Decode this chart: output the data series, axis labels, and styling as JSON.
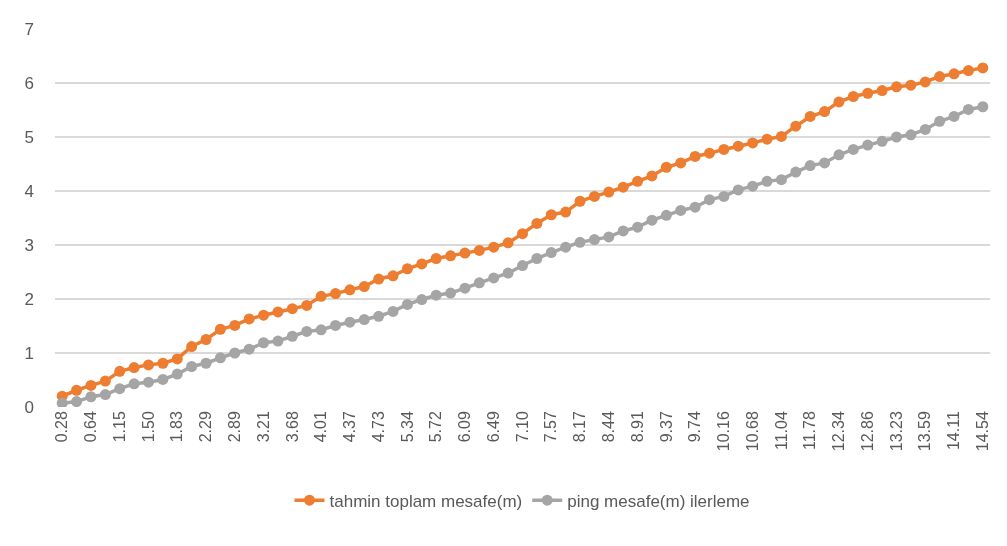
{
  "chart_data": {
    "type": "line",
    "categories": [
      "0.28",
      null,
      "0.64",
      null,
      "1.15",
      null,
      "1.50",
      null,
      "1.83",
      null,
      "2.29",
      null,
      "2.89",
      null,
      "3.21",
      null,
      "3.68",
      null,
      "4.01",
      null,
      "4.37",
      null,
      "4.73",
      null,
      "5.34",
      null,
      "5.72",
      null,
      "6.09",
      null,
      "6.49",
      null,
      "7.10",
      null,
      "7.57",
      null,
      "8.17",
      null,
      "8.44",
      null,
      "8.91",
      null,
      "9.37",
      null,
      "9.74",
      null,
      "10.16",
      null,
      "10.68",
      null,
      "11.04",
      null,
      "11.78",
      null,
      "12.34",
      null,
      "12.86",
      null,
      "13.23",
      null,
      "13.59",
      null,
      "14.11",
      null,
      "14.54"
    ],
    "series": [
      {
        "name": "tahmin toplam mesafe(m)",
        "color": "#ed7d31",
        "values": [
          0.2,
          0.31,
          0.4,
          0.48,
          0.66,
          0.73,
          0.78,
          0.81,
          0.89,
          1.12,
          1.25,
          1.44,
          1.51,
          1.63,
          1.7,
          1.76,
          1.82,
          1.88,
          2.05,
          2.1,
          2.17,
          2.23,
          2.37,
          2.43,
          2.56,
          2.65,
          2.75,
          2.8,
          2.85,
          2.9,
          2.96,
          3.04,
          3.21,
          3.4,
          3.56,
          3.61,
          3.81,
          3.9,
          3.98,
          4.07,
          4.18,
          4.28,
          4.44,
          4.52,
          4.64,
          4.7,
          4.77,
          4.83,
          4.89,
          4.96,
          5.01,
          5.2,
          5.38,
          5.47,
          5.65,
          5.75,
          5.81,
          5.86,
          5.93,
          5.96,
          6.02,
          6.12,
          6.17,
          6.23,
          6.28
        ]
      },
      {
        "name": "ping mesafe(m) ilerleme",
        "color": "#a5a5a5",
        "values": [
          0.07,
          0.1,
          0.19,
          0.23,
          0.34,
          0.43,
          0.46,
          0.51,
          0.61,
          0.75,
          0.81,
          0.91,
          1.0,
          1.07,
          1.19,
          1.22,
          1.31,
          1.4,
          1.43,
          1.51,
          1.57,
          1.62,
          1.68,
          1.77,
          1.9,
          1.99,
          2.07,
          2.11,
          2.2,
          2.3,
          2.39,
          2.48,
          2.62,
          2.75,
          2.86,
          2.96,
          3.05,
          3.1,
          3.15,
          3.26,
          3.33,
          3.46,
          3.55,
          3.64,
          3.7,
          3.84,
          3.9,
          4.02,
          4.09,
          4.18,
          4.21,
          4.35,
          4.47,
          4.52,
          4.67,
          4.77,
          4.85,
          4.92,
          5.0,
          5.04,
          5.14,
          5.29,
          5.38,
          5.51,
          5.56
        ]
      }
    ],
    "ylim": [
      0,
      7
    ],
    "yticks": [
      0,
      1,
      2,
      3,
      4,
      5,
      6,
      7
    ],
    "grid": "y",
    "legend": "bottom",
    "marker": "circle",
    "line_style": "solid"
  }
}
